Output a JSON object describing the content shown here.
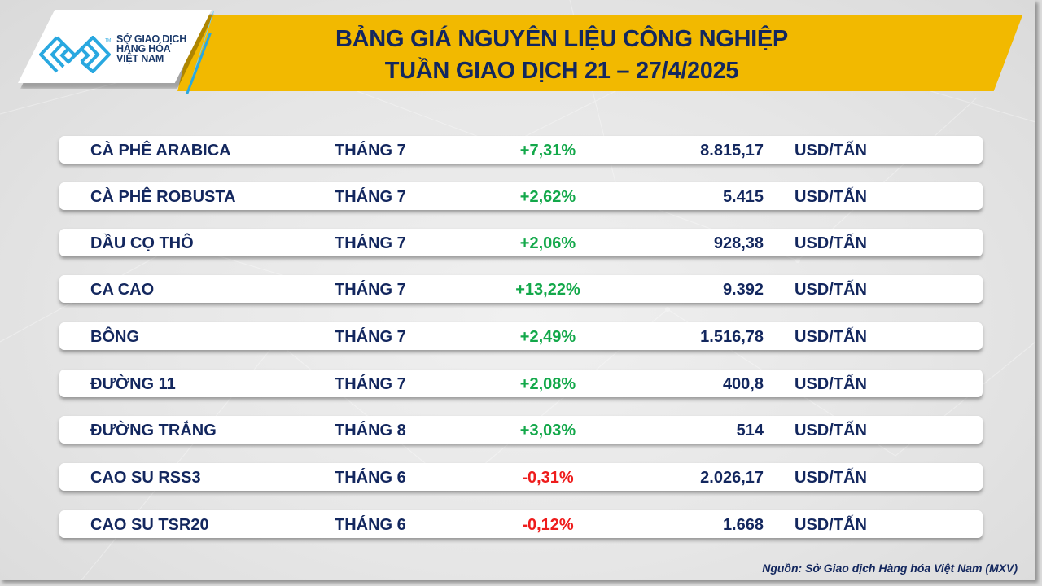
{
  "header": {
    "logo": {
      "icon": "mxv-logo-icon",
      "lines": [
        "SỞ GIAO DỊCH",
        "HÀNG HÓA",
        "VIỆT NAM"
      ],
      "tm": "TM",
      "brand_color": "#29a8e0"
    },
    "title_line1": "BẢNG GIÁ NGUYÊN LIỆU CÔNG NGHIỆP",
    "title_line2": "TUẦN GIAO DỊCH 21 – 27/4/2025",
    "band_color": "#f2b900",
    "title_color": "#13275e"
  },
  "table": {
    "rows": [
      {
        "name": "CÀ PHÊ ARABICA",
        "contract": "THÁNG 7",
        "change": "+7,31%",
        "direction": "up",
        "price": "8.815,17",
        "unit": "USD/TẤN"
      },
      {
        "name": "CÀ PHÊ ROBUSTA",
        "contract": "THÁNG 7",
        "change": "+2,62%",
        "direction": "up",
        "price": "5.415",
        "unit": "USD/TẤN"
      },
      {
        "name": "DẦU CỌ THÔ",
        "contract": "THÁNG 7",
        "change": "+2,06%",
        "direction": "up",
        "price": "928,38",
        "unit": "USD/TẤN"
      },
      {
        "name": "CA CAO",
        "contract": "THÁNG 7",
        "change": "+13,22%",
        "direction": "up",
        "price": "9.392",
        "unit": "USD/TẤN"
      },
      {
        "name": "BÔNG",
        "contract": "THÁNG 7",
        "change": "+2,49%",
        "direction": "up",
        "price": "1.516,78",
        "unit": "USD/TẤN"
      },
      {
        "name": "ĐƯỜNG 11",
        "contract": "THÁNG 7",
        "change": "+2,08%",
        "direction": "up",
        "price": "400,8",
        "unit": "USD/TẤN"
      },
      {
        "name": "ĐƯỜNG TRẮNG",
        "contract": "THÁNG 8",
        "change": "+3,03%",
        "direction": "up",
        "price": "514",
        "unit": "USD/TẤN"
      },
      {
        "name": "CAO SU RSS3",
        "contract": "THÁNG 6",
        "change": "-0,31%",
        "direction": "down",
        "price": "2.026,17",
        "unit": "USD/TẤN"
      },
      {
        "name": "CAO SU TSR20",
        "contract": "THÁNG 6",
        "change": "-0,12%",
        "direction": "down",
        "price": "1.668",
        "unit": "USD/TẤN"
      }
    ],
    "colors": {
      "up": "#13a84a",
      "down": "#ee1c1c",
      "text": "#13275e"
    }
  },
  "footer": {
    "source": "Nguồn: Sở Giao dịch Hàng hóa Việt Nam (MXV)"
  }
}
